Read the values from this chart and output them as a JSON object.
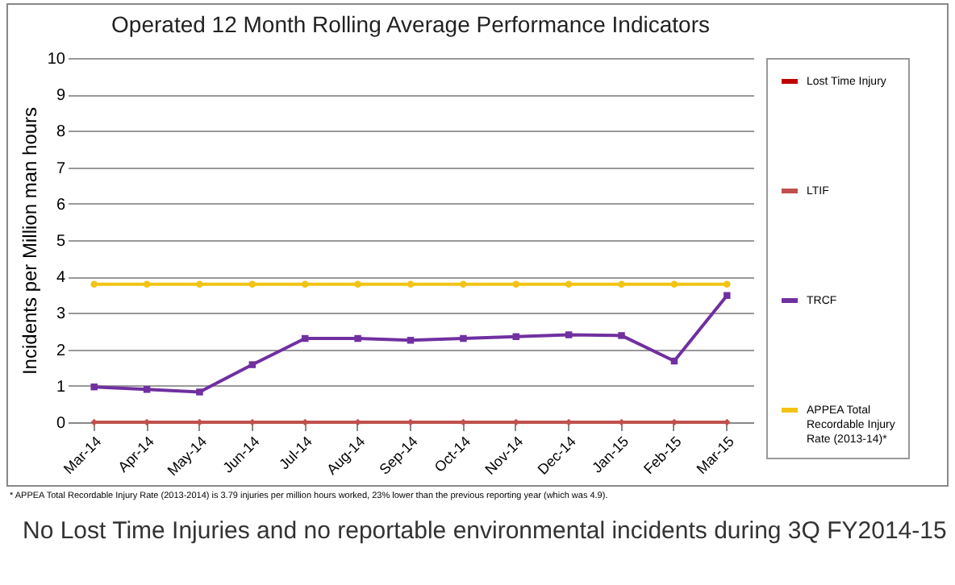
{
  "chart_data": {
    "type": "line",
    "title": "Operated 12 Month Rolling Average Performance Indicators",
    "ylabel": "Incidents per Million man hours",
    "categories": [
      "Mar-14",
      "Apr-14",
      "May-14",
      "Jun-14",
      "Jul-14",
      "Aug-14",
      "Sep-14",
      "Oct-14",
      "Nov-14",
      "Dec-14",
      "Jan-15",
      "Feb-15",
      "Mar-15"
    ],
    "series": [
      {
        "name": "Lost Time Injury",
        "type": "bar",
        "color": "#c00000",
        "values": [
          0,
          0,
          0,
          0,
          0,
          0,
          0,
          0,
          0,
          0,
          0,
          0,
          0
        ]
      },
      {
        "name": "LTIF",
        "color": "#c0504d",
        "marker": "diamond",
        "values": [
          0,
          0,
          0,
          0,
          0,
          0,
          0,
          0,
          0,
          0,
          0,
          0,
          0
        ]
      },
      {
        "name": "TRCF",
        "color": "#7030a0",
        "marker": "square",
        "values": [
          0.97,
          0.9,
          0.83,
          1.58,
          2.3,
          2.3,
          2.25,
          2.3,
          2.35,
          2.4,
          2.38,
          1.68,
          3.48
        ]
      },
      {
        "name": "APPEA Total Recordable Injury Rate (2013-14)*",
        "color": "#f2c314",
        "marker": "circle",
        "values": [
          3.79,
          3.79,
          3.79,
          3.79,
          3.79,
          3.79,
          3.79,
          3.79,
          3.79,
          3.79,
          3.79,
          3.79,
          3.79
        ]
      }
    ],
    "ylim": [
      0,
      10
    ],
    "yticks": [
      0,
      1,
      2,
      3,
      4,
      5,
      6,
      7,
      8,
      9,
      10
    ],
    "grid": "y",
    "legend": "right",
    "annotations": [
      "* APPEA Total Recordable Injury Rate (2013-2014) is 3.79 injuries per million hours worked, 23% lower than the previous reporting year (which was 4.9).",
      "No Lost Time Injuries and no reportable environmental incidents during 3Q FY2014-15"
    ]
  }
}
